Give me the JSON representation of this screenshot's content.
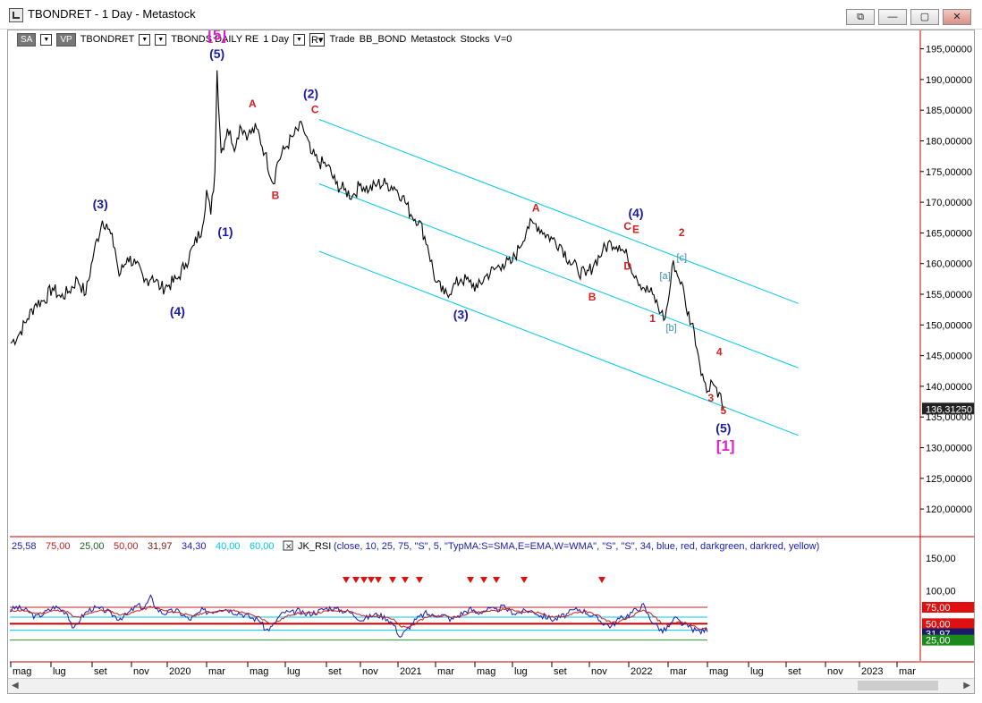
{
  "window": {
    "title": "TBONDRET - 1 Day - Metastock",
    "buttons": [
      "⧉",
      "—",
      "▢",
      "✕"
    ]
  },
  "toolbar": {
    "items": [
      "SA",
      "VP",
      "TBONDRET",
      "TBONDS DAILY RE",
      "1 Day",
      "R",
      "Trade",
      "BB_BOND",
      "Metastock",
      "Stocks",
      "V=0"
    ]
  },
  "colors": {
    "price": "#000000",
    "channel": "#00c8e6",
    "wave_blue": "#1a1aa8",
    "wave_red": "#d42020",
    "wave_magenta": "#e020c8",
    "wave_teal": "#3a90a8",
    "rsi_blue": "#1a1ab4",
    "rsi_red": "#c02020",
    "price_badge": "#222222"
  },
  "chart_data": [
    {
      "type": "line",
      "series": [
        {
          "values_approx": [
            [
              0,
              147
            ],
            [
              2,
              148.5
            ],
            [
              4,
              151
            ],
            [
              6,
              153.5
            ],
            [
              8,
              154
            ],
            [
              10,
              156
            ],
            [
              12,
              154.5
            ],
            [
              14,
              155.5
            ],
            [
              16,
              157.5
            ],
            [
              18,
              155
            ],
            [
              20,
              162
            ],
            [
              22,
              167
            ],
            [
              23,
              166.5
            ],
            [
              25,
              162.5
            ],
            [
              26,
              158
            ],
            [
              28,
              161
            ],
            [
              30,
              160
            ],
            [
              32,
              157
            ],
            [
              34,
              158
            ],
            [
              36,
              156
            ],
            [
              38,
              156.5
            ],
            [
              40,
              157.5
            ],
            [
              42,
              160
            ],
            [
              44,
              163
            ],
            [
              46,
              166
            ],
            [
              47,
              172
            ],
            [
              48,
              168
            ],
            [
              49,
              175
            ],
            [
              49.5,
              191.5
            ],
            [
              50.5,
              178
            ],
            [
              52,
              182
            ],
            [
              54,
              179
            ],
            [
              55,
              182.5
            ],
            [
              57,
              181
            ],
            [
              59,
              182
            ],
            [
              61,
              178
            ],
            [
              63,
              173
            ],
            [
              64,
              176.5
            ],
            [
              66,
              179
            ],
            [
              68,
              181
            ],
            [
              70,
              182.5
            ],
            [
              72,
              178
            ],
            [
              74,
              176.5
            ],
            [
              76,
              176
            ],
            [
              78,
              173
            ],
            [
              80,
              172
            ],
            [
              82,
              171
            ],
            [
              84,
              173
            ],
            [
              86,
              172
            ],
            [
              88,
              173
            ],
            [
              90,
              173
            ],
            [
              92,
              172.5
            ],
            [
              94,
              171
            ],
            [
              96,
              168
            ],
            [
              98,
              167
            ],
            [
              100,
              163
            ],
            [
              102,
              157
            ],
            [
              104,
              155
            ],
            [
              106,
              156
            ],
            [
              108,
              157.5
            ],
            [
              110,
              157
            ],
            [
              112,
              156
            ],
            [
              114,
              158
            ],
            [
              116,
              159
            ],
            [
              118,
              160
            ],
            [
              120,
              160
            ],
            [
              122,
              162.5
            ],
            [
              124,
              166
            ],
            [
              126,
              166.5
            ],
            [
              128,
              165
            ],
            [
              130,
              164
            ],
            [
              132,
              163
            ],
            [
              134,
              160.5
            ],
            [
              136,
              159
            ],
            [
              138,
              158
            ],
            [
              140,
              160
            ],
            [
              142,
              162
            ],
            [
              144,
              163.5
            ],
            [
              146,
              163
            ],
            [
              148,
              161
            ],
            [
              150,
              158
            ],
            [
              152,
              156
            ],
            [
              154,
              155
            ],
            [
              156,
              152
            ],
            [
              157,
              151
            ],
            [
              158,
              155
            ],
            [
              159,
              160.5
            ],
            [
              160,
              158
            ],
            [
              161,
              157
            ],
            [
              162,
              153
            ],
            [
              164,
              149
            ],
            [
              165,
              145
            ],
            [
              166,
              142
            ],
            [
              167,
              139
            ],
            [
              168,
              141
            ],
            [
              169,
              140
            ],
            [
              170,
              139
            ],
            [
              171,
              136.3
            ]
          ],
          "last_value_label": "136,31250"
        }
      ],
      "x_tick_labels": [
        "mag",
        "lug",
        "set",
        "nov",
        "2020",
        "mar",
        "mag",
        "lug",
        "set",
        "nov",
        "2021",
        "mar",
        "mag",
        "lug",
        "set",
        "nov",
        "2022",
        "mar",
        "mag",
        "lug",
        "set",
        "nov",
        "2023",
        "mar"
      ],
      "y_ticks": [
        195,
        190,
        185,
        180,
        175,
        170,
        165,
        160,
        155,
        150,
        145,
        140,
        135,
        130,
        125,
        120
      ],
      "y_tick_labels": [
        "195,00000",
        "190,00000",
        "185,00000",
        "180,00000",
        "175,00000",
        "170,00000",
        "165,00000",
        "160,00000",
        "155,00000",
        "150,00000",
        "145,00000",
        "140,00000",
        "135,00000",
        "130,00000",
        "125,00000",
        "120,00000"
      ],
      "ylim": [
        115.5,
        198
      ],
      "annotations": [
        {
          "text": "[5]",
          "x": 49.5,
          "y": 196.5,
          "color": "magenta"
        },
        {
          "text": "(5)",
          "x": 49.5,
          "y": 193.5,
          "color": "blue"
        },
        {
          "text": "A",
          "x": 58,
          "y": 185.5,
          "color": "red"
        },
        {
          "text": "(2)",
          "x": 72,
          "y": 187,
          "color": "blue"
        },
        {
          "text": "C",
          "x": 73,
          "y": 184.5,
          "color": "red"
        },
        {
          "text": "B",
          "x": 63.5,
          "y": 170.5,
          "color": "red"
        },
        {
          "text": "(3)",
          "x": 21.5,
          "y": 169,
          "color": "blue"
        },
        {
          "text": "(1)",
          "x": 51.5,
          "y": 164.5,
          "color": "blue"
        },
        {
          "text": "(4)",
          "x": 40,
          "y": 151.5,
          "color": "blue"
        },
        {
          "text": "A",
          "x": 126,
          "y": 168.5,
          "color": "red"
        },
        {
          "text": "(4)",
          "x": 150,
          "y": 167.5,
          "color": "blue"
        },
        {
          "text": "C",
          "x": 148,
          "y": 165.5,
          "color": "red"
        },
        {
          "text": "E",
          "x": 150,
          "y": 165,
          "color": "red"
        },
        {
          "text": "2",
          "x": 161,
          "y": 164.5,
          "color": "red"
        },
        {
          "text": "[c]",
          "x": 161,
          "y": 160.5,
          "color": "teal"
        },
        {
          "text": "D",
          "x": 148,
          "y": 159,
          "color": "red"
        },
        {
          "text": "[a]",
          "x": 157,
          "y": 157.5,
          "color": "teal"
        },
        {
          "text": "B",
          "x": 139.5,
          "y": 154,
          "color": "red"
        },
        {
          "text": "(3)",
          "x": 108,
          "y": 151,
          "color": "blue"
        },
        {
          "text": "1",
          "x": 154,
          "y": 150.5,
          "color": "red"
        },
        {
          "text": "[b]",
          "x": 158.5,
          "y": 149,
          "color": "teal"
        },
        {
          "text": "4",
          "x": 170,
          "y": 145,
          "color": "red"
        },
        {
          "text": "3",
          "x": 168,
          "y": 137.5,
          "color": "red"
        },
        {
          "text": "5",
          "x": 171,
          "y": 135.5,
          "color": "red"
        },
        {
          "text": "(5)",
          "x": 171,
          "y": 132.5,
          "color": "blue"
        },
        {
          "text": "[1]",
          "x": 171.5,
          "y": 129.5,
          "color": "magenta"
        }
      ],
      "channel_lines": [
        {
          "from": [
            74,
            183.5
          ],
          "to": [
            189,
            153.5
          ]
        },
        {
          "from": [
            74,
            173
          ],
          "to": [
            189,
            143
          ]
        },
        {
          "from": [
            74,
            162
          ],
          "to": [
            189,
            132
          ]
        }
      ]
    },
    {
      "type": "line",
      "title": "JK_RSI",
      "legend_values": [
        "25,58",
        "75,00",
        "25,00",
        "50,00",
        "31,97",
        "34,30",
        "40,00",
        "60,00"
      ],
      "formula": "(close,  10,  25,  75,  \"S\",  5,  \"TypMA:S=SMA,E=EMA,W=WMA\",  \"S\",  \"S\",  34,  blue,  red,  darkgreen,  darkred,  yellow)",
      "y_tick_labels": [
        "150,00",
        "100,00"
      ],
      "level_labels": [
        "75,00",
        "50,00",
        "31,97",
        "25,00"
      ],
      "ylim": [
        0,
        150
      ],
      "series": [
        {
          "name": "blue",
          "values_approx": [
            70,
            75,
            72,
            68,
            60,
            64,
            70,
            76,
            72,
            66,
            40,
            58,
            68,
            74,
            72,
            70,
            64,
            58,
            62,
            70,
            78,
            74,
            90,
            72,
            66,
            68,
            70,
            64,
            56,
            62,
            70,
            68,
            70,
            74,
            72,
            68,
            66,
            62,
            58,
            56,
            40,
            45,
            60,
            68,
            66,
            70,
            64,
            66,
            68,
            72,
            74,
            72,
            70,
            68,
            62,
            56,
            60,
            64,
            62,
            58,
            48,
            30,
            40,
            52,
            60,
            66,
            62,
            64,
            62,
            56,
            62,
            68,
            72,
            66,
            70,
            72,
            70,
            76,
            70,
            66,
            68,
            70,
            68,
            62,
            60,
            56,
            60,
            64,
            70,
            72,
            68,
            62,
            56,
            50,
            46,
            56,
            60,
            66,
            72,
            78,
            58,
            48,
            38,
            46,
            58,
            50,
            46,
            40,
            38,
            42
          ]
        },
        {
          "name": "red",
          "values_approx": [
            70,
            70,
            70,
            68,
            66,
            66,
            68,
            70,
            70,
            68,
            60,
            60,
            64,
            68,
            70,
            70,
            68,
            64,
            64,
            66,
            70,
            72,
            76,
            74,
            70,
            68,
            68,
            66,
            62,
            62,
            66,
            68,
            68,
            70,
            70,
            70,
            68,
            66,
            62,
            60,
            54,
            50,
            54,
            60,
            64,
            66,
            66,
            66,
            66,
            68,
            70,
            70,
            70,
            70,
            66,
            62,
            60,
            62,
            62,
            60,
            56,
            46,
            44,
            48,
            54,
            60,
            62,
            62,
            62,
            60,
            60,
            64,
            68,
            68,
            68,
            70,
            70,
            72,
            72,
            70,
            68,
            68,
            68,
            66,
            62,
            60,
            60,
            62,
            66,
            68,
            68,
            66,
            62,
            56,
            52,
            52,
            56,
            60,
            66,
            70,
            66,
            58,
            50,
            48,
            52,
            52,
            50,
            46,
            42,
            42
          ]
        }
      ],
      "signal_markers_x": [
        378,
        389,
        398,
        406,
        414,
        430,
        444,
        460,
        517,
        532,
        546,
        577,
        664
      ]
    }
  ]
}
